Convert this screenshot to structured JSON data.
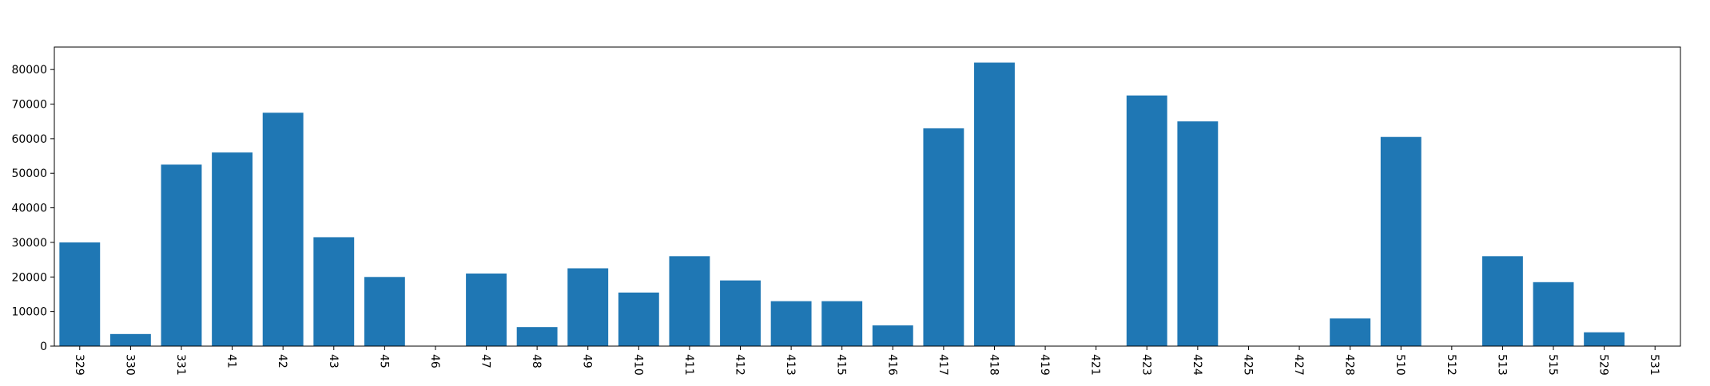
{
  "chart_data": {
    "type": "bar",
    "title": "",
    "xlabel": "",
    "ylabel": "",
    "categories": [
      "329",
      "330",
      "331",
      "41",
      "42",
      "43",
      "45",
      "46",
      "47",
      "48",
      "49",
      "410",
      "411",
      "412",
      "413",
      "415",
      "416",
      "417",
      "418",
      "419",
      "421",
      "423",
      "424",
      "425",
      "427",
      "428",
      "510",
      "512",
      "513",
      "515",
      "529",
      "531"
    ],
    "values": [
      30000,
      3500,
      52500,
      56000,
      67500,
      31500,
      20000,
      0,
      21000,
      5500,
      22500,
      15500,
      26000,
      19000,
      13000,
      13000,
      6000,
      63000,
      82000,
      0,
      0,
      72500,
      65000,
      0,
      0,
      8000,
      60500,
      0,
      26000,
      18500,
      4000,
      0
    ],
    "ylim": [
      0,
      86500
    ],
    "yticks": [
      0,
      10000,
      20000,
      30000,
      40000,
      50000,
      60000,
      70000,
      80000
    ],
    "grid": false,
    "bar_color": "#1f77b4"
  }
}
